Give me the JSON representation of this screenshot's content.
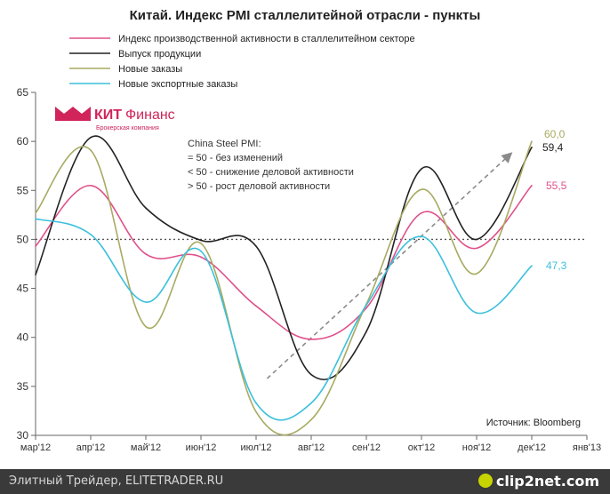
{
  "chart_data": {
    "type": "line",
    "title": "Китай. Индекс PMI сталлелитейной отрасли - пункты",
    "ylim": [
      30,
      65
    ],
    "yticks": [
      30,
      35,
      40,
      45,
      50,
      55,
      60,
      65
    ],
    "x_domain": [
      0,
      10
    ],
    "categories": [
      "мар'12",
      "апр'12",
      "май'12",
      "июн'12",
      "июл'12",
      "авг'12",
      "сен'12",
      "окт'12",
      "ноя'12",
      "дек'12",
      "янв'13"
    ],
    "reference_line": 50,
    "series": [
      {
        "name": "Индекс производственной активности в сталлелитейном секторе",
        "color": "#e0508a",
        "x": [
          0,
          1,
          2,
          3,
          4,
          5,
          6,
          7,
          8,
          9
        ],
        "values": [
          49.3,
          55.5,
          48.5,
          48.2,
          43.2,
          39.8,
          43.0,
          52.7,
          49.1,
          55.5
        ]
      },
      {
        "name": "Выпуск продукции",
        "color": "#222222",
        "x": [
          0,
          1,
          2,
          3,
          4,
          5,
          6,
          7,
          8,
          9
        ],
        "values": [
          46.4,
          60.4,
          53.2,
          49.9,
          49.3,
          36.2,
          40.6,
          57.2,
          50.0,
          59.4
        ]
      },
      {
        "name": "Новые заказы",
        "color": "#a8aa62",
        "x": [
          0,
          1,
          2,
          3,
          4,
          5,
          6,
          7,
          8,
          9
        ],
        "values": [
          52.7,
          59.1,
          41.1,
          49.6,
          32.4,
          31.6,
          43.4,
          55.1,
          46.5,
          60.0
        ]
      },
      {
        "name": "Новые экспортные заказы",
        "color": "#3cc0dc",
        "x": [
          0,
          1,
          2,
          3,
          4,
          5,
          6,
          7,
          8,
          9
        ],
        "values": [
          52.1,
          50.5,
          43.6,
          48.8,
          33.3,
          33.3,
          43.3,
          50.3,
          42.5,
          47.3
        ]
      }
    ],
    "end_labels": [
      "55,5",
      "59,4",
      "60,0",
      "47,3"
    ],
    "trend_arrow": {
      "x": [
        4.2,
        8.65
      ],
      "y": [
        35.8,
        58.9
      ]
    },
    "legend_position": "top-left",
    "grid": false
  },
  "annotation": {
    "lines": [
      "China Steel PMI:",
      "= 50 - без изменений",
      "< 50 - снижение деловой активности",
      "> 50 - рост деловой активности"
    ]
  },
  "logo": {
    "text_bold": "КИТ",
    "text_light": "Финанс",
    "subtitle": "Брокерская компания"
  },
  "source": "Источник: Bloomberg",
  "footer": {
    "text": "Элитный Трейдер, ELITETRADER.RU",
    "logo": "clip2net.com"
  }
}
